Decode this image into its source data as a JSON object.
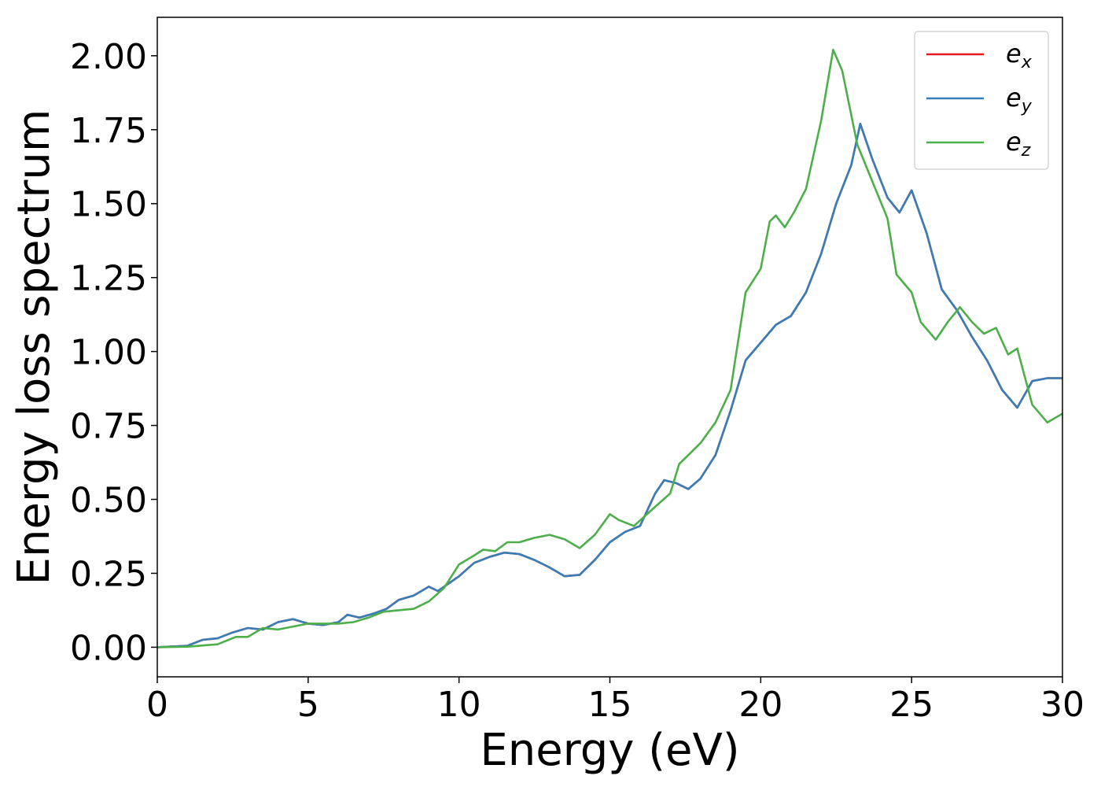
{
  "chart_data": {
    "type": "line",
    "title": "",
    "xlabel": "Energy (eV)",
    "ylabel": "Energy loss spectrum",
    "xlim": [
      0,
      30
    ],
    "ylim": [
      -0.1,
      2.13
    ],
    "xticks": [
      0,
      5,
      10,
      15,
      20,
      25,
      30
    ],
    "xtick_labels": [
      "0",
      "5",
      "10",
      "15",
      "20",
      "25",
      "30"
    ],
    "yticks": [
      0,
      0.25,
      0.5,
      0.75,
      1.0,
      1.25,
      1.5,
      1.75,
      2.0
    ],
    "ytick_labels": [
      "0.00",
      "0.25",
      "0.50",
      "0.75",
      "1.00",
      "1.25",
      "1.50",
      "1.75",
      "2.00"
    ],
    "grid": false,
    "legend_position": "top-right",
    "series": [
      {
        "name": "e_x",
        "legend_base": "e",
        "legend_sub": "x",
        "color": "#e41a1c",
        "points": [
          [
            0,
            0
          ],
          [
            1,
            0.005
          ],
          [
            1.5,
            0.025
          ],
          [
            2,
            0.03
          ],
          [
            2.5,
            0.05
          ],
          [
            3,
            0.065
          ],
          [
            3.5,
            0.06
          ],
          [
            4,
            0.085
          ],
          [
            4.5,
            0.095
          ],
          [
            5,
            0.08
          ],
          [
            5.5,
            0.075
          ],
          [
            6,
            0.085
          ],
          [
            6.3,
            0.11
          ],
          [
            6.7,
            0.1
          ],
          [
            7.2,
            0.115
          ],
          [
            7.6,
            0.13
          ],
          [
            8,
            0.16
          ],
          [
            8.5,
            0.175
          ],
          [
            9,
            0.205
          ],
          [
            9.3,
            0.19
          ],
          [
            10,
            0.24
          ],
          [
            10.5,
            0.285
          ],
          [
            11,
            0.305
          ],
          [
            11.5,
            0.32
          ],
          [
            12,
            0.315
          ],
          [
            12.5,
            0.295
          ],
          [
            13,
            0.27
          ],
          [
            13.5,
            0.24
          ],
          [
            14,
            0.245
          ],
          [
            14.5,
            0.295
          ],
          [
            15,
            0.355
          ],
          [
            15.5,
            0.39
          ],
          [
            16,
            0.41
          ],
          [
            16.5,
            0.52
          ],
          [
            16.8,
            0.565
          ],
          [
            17.2,
            0.555
          ],
          [
            17.6,
            0.535
          ],
          [
            18,
            0.57
          ],
          [
            18.5,
            0.65
          ],
          [
            19,
            0.8
          ],
          [
            19.5,
            0.97
          ],
          [
            20,
            1.03
          ],
          [
            20.5,
            1.09
          ],
          [
            21,
            1.12
          ],
          [
            21.5,
            1.2
          ],
          [
            22,
            1.33
          ],
          [
            22.5,
            1.5
          ],
          [
            23,
            1.63
          ],
          [
            23.3,
            1.77
          ],
          [
            23.7,
            1.65
          ],
          [
            24.2,
            1.52
          ],
          [
            24.6,
            1.47
          ],
          [
            25,
            1.545
          ],
          [
            25.5,
            1.4
          ],
          [
            26,
            1.21
          ],
          [
            26.5,
            1.14
          ],
          [
            27,
            1.05
          ],
          [
            27.5,
            0.97
          ],
          [
            28,
            0.87
          ],
          [
            28.5,
            0.81
          ],
          [
            29,
            0.9
          ],
          [
            29.5,
            0.91
          ],
          [
            30,
            0.91
          ]
        ]
      },
      {
        "name": "e_y",
        "legend_base": "e",
        "legend_sub": "y",
        "color": "#377eb8",
        "points": [
          [
            0,
            0
          ],
          [
            1,
            0.005
          ],
          [
            1.5,
            0.025
          ],
          [
            2,
            0.03
          ],
          [
            2.5,
            0.05
          ],
          [
            3,
            0.065
          ],
          [
            3.5,
            0.06
          ],
          [
            4,
            0.085
          ],
          [
            4.5,
            0.095
          ],
          [
            5,
            0.08
          ],
          [
            5.5,
            0.075
          ],
          [
            6,
            0.085
          ],
          [
            6.3,
            0.11
          ],
          [
            6.7,
            0.1
          ],
          [
            7.2,
            0.115
          ],
          [
            7.6,
            0.13
          ],
          [
            8,
            0.16
          ],
          [
            8.5,
            0.175
          ],
          [
            9,
            0.205
          ],
          [
            9.3,
            0.19
          ],
          [
            10,
            0.24
          ],
          [
            10.5,
            0.285
          ],
          [
            11,
            0.305
          ],
          [
            11.5,
            0.32
          ],
          [
            12,
            0.315
          ],
          [
            12.5,
            0.295
          ],
          [
            13,
            0.27
          ],
          [
            13.5,
            0.24
          ],
          [
            14,
            0.245
          ],
          [
            14.5,
            0.295
          ],
          [
            15,
            0.355
          ],
          [
            15.5,
            0.39
          ],
          [
            16,
            0.41
          ],
          [
            16.5,
            0.52
          ],
          [
            16.8,
            0.565
          ],
          [
            17.2,
            0.555
          ],
          [
            17.6,
            0.535
          ],
          [
            18,
            0.57
          ],
          [
            18.5,
            0.65
          ],
          [
            19,
            0.8
          ],
          [
            19.5,
            0.97
          ],
          [
            20,
            1.03
          ],
          [
            20.5,
            1.09
          ],
          [
            21,
            1.12
          ],
          [
            21.5,
            1.2
          ],
          [
            22,
            1.33
          ],
          [
            22.5,
            1.5
          ],
          [
            23,
            1.63
          ],
          [
            23.3,
            1.77
          ],
          [
            23.7,
            1.65
          ],
          [
            24.2,
            1.52
          ],
          [
            24.6,
            1.47
          ],
          [
            25,
            1.545
          ],
          [
            25.5,
            1.4
          ],
          [
            26,
            1.21
          ],
          [
            26.5,
            1.14
          ],
          [
            27,
            1.05
          ],
          [
            27.5,
            0.97
          ],
          [
            28,
            0.87
          ],
          [
            28.5,
            0.81
          ],
          [
            29,
            0.9
          ],
          [
            29.5,
            0.91
          ],
          [
            30,
            0.91
          ]
        ]
      },
      {
        "name": "e_z",
        "legend_base": "e",
        "legend_sub": "z",
        "color": "#4daf4a",
        "points": [
          [
            0,
            0
          ],
          [
            1,
            0.002
          ],
          [
            2,
            0.01
          ],
          [
            2.6,
            0.035
          ],
          [
            3,
            0.035
          ],
          [
            3.5,
            0.065
          ],
          [
            4,
            0.06
          ],
          [
            4.5,
            0.07
          ],
          [
            5,
            0.08
          ],
          [
            5.5,
            0.08
          ],
          [
            6,
            0.08
          ],
          [
            6.5,
            0.085
          ],
          [
            7,
            0.1
          ],
          [
            7.5,
            0.12
          ],
          [
            8,
            0.125
          ],
          [
            8.5,
            0.13
          ],
          [
            9,
            0.155
          ],
          [
            9.5,
            0.2
          ],
          [
            10,
            0.28
          ],
          [
            10.5,
            0.31
          ],
          [
            10.8,
            0.33
          ],
          [
            11.2,
            0.325
          ],
          [
            11.6,
            0.355
          ],
          [
            12,
            0.355
          ],
          [
            12.5,
            0.37
          ],
          [
            13,
            0.38
          ],
          [
            13.5,
            0.365
          ],
          [
            14,
            0.335
          ],
          [
            14.5,
            0.38
          ],
          [
            15,
            0.45
          ],
          [
            15.3,
            0.43
          ],
          [
            15.8,
            0.41
          ],
          [
            16.5,
            0.475
          ],
          [
            17,
            0.52
          ],
          [
            17.3,
            0.62
          ],
          [
            17.6,
            0.65
          ],
          [
            18,
            0.69
          ],
          [
            18.5,
            0.76
          ],
          [
            19,
            0.87
          ],
          [
            19.5,
            1.2
          ],
          [
            20,
            1.28
          ],
          [
            20.3,
            1.44
          ],
          [
            20.5,
            1.46
          ],
          [
            20.8,
            1.42
          ],
          [
            21.1,
            1.47
          ],
          [
            21.5,
            1.55
          ],
          [
            22,
            1.78
          ],
          [
            22.4,
            2.02
          ],
          [
            22.7,
            1.95
          ],
          [
            23.2,
            1.7
          ],
          [
            23.8,
            1.55
          ],
          [
            24.2,
            1.45
          ],
          [
            24.5,
            1.26
          ],
          [
            25,
            1.2
          ],
          [
            25.3,
            1.1
          ],
          [
            25.8,
            1.04
          ],
          [
            26.2,
            1.1
          ],
          [
            26.6,
            1.15
          ],
          [
            27,
            1.1
          ],
          [
            27.4,
            1.06
          ],
          [
            27.8,
            1.08
          ],
          [
            28.2,
            0.99
          ],
          [
            28.5,
            1.01
          ],
          [
            29,
            0.82
          ],
          [
            29.5,
            0.76
          ],
          [
            30,
            0.79
          ]
        ]
      }
    ]
  }
}
